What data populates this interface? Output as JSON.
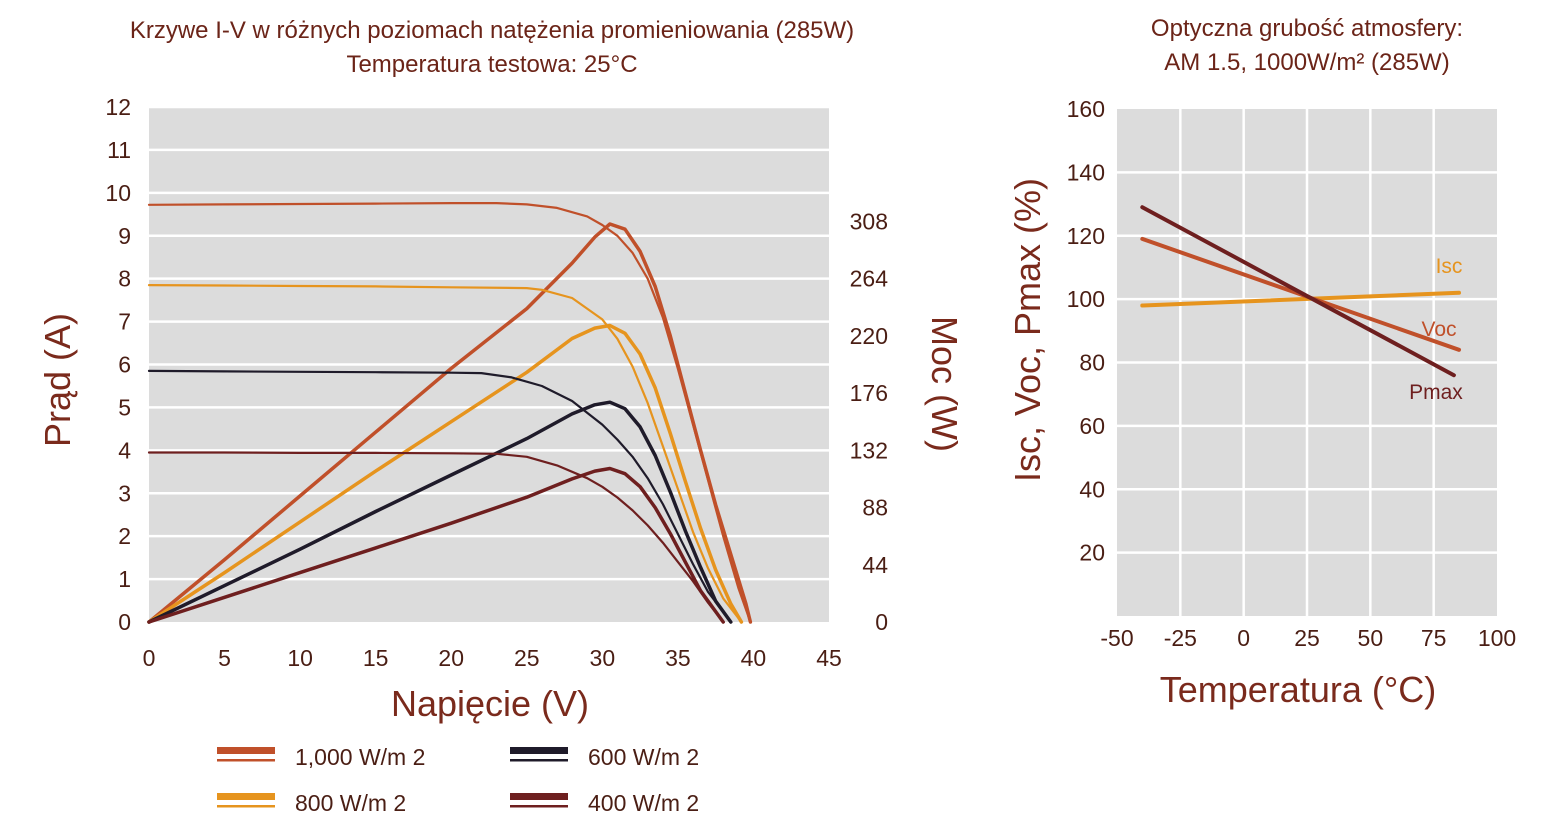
{
  "colors": {
    "irr_1000": "#c0502a",
    "irr_800": "#e6941e",
    "irr_600": "#1f1b2a",
    "irr_400": "#6e1f1f",
    "isc": "#e6941e",
    "voc": "#c0502a",
    "pmax": "#6e1f1f",
    "plot_bg": "#dcdcdc",
    "grid": "#ffffff",
    "text": "#6b2418"
  },
  "chart_data": [
    {
      "type": "line",
      "title": "Krzywe I-V w różnych poziomach natężenia promieniowania (285W)",
      "subtitle": "Temperatura testowa: 25°C",
      "xlabel": "Napięcie (V)",
      "ylabel": "Prąd (A)",
      "y2label": "Moc (W)",
      "xlim": [
        0,
        45
      ],
      "ylim": [
        0,
        12
      ],
      "y2lim": [
        0,
        396
      ],
      "xticks": [
        "0",
        "5",
        "10",
        "15",
        "20",
        "25",
        "30",
        "35",
        "40",
        "45"
      ],
      "yticks": [
        "0",
        "1",
        "2",
        "3",
        "4",
        "5",
        "6",
        "7",
        "8",
        "9",
        "10",
        "11",
        "12"
      ],
      "y2ticks": [
        {
          "value": 0,
          "label": "0"
        },
        {
          "value": 44,
          "label": "44"
        },
        {
          "value": 88,
          "label": "88"
        },
        {
          "value": 132,
          "label": "132"
        },
        {
          "value": 176,
          "label": "176"
        },
        {
          "value": 220,
          "label": "220"
        },
        {
          "value": 264,
          "label": "264"
        },
        {
          "value": 308,
          "label": "308"
        }
      ],
      "grid": true,
      "series": [
        {
          "name": "1,000 W/m 2",
          "color_key": "irr_1000",
          "current_x": [
            0,
            5,
            10,
            15,
            20,
            23,
            25,
            27,
            29,
            30,
            31,
            32,
            33,
            34,
            35,
            36,
            37,
            38,
            39,
            39.8
          ],
          "current_y": [
            9.72,
            9.73,
            9.74,
            9.75,
            9.76,
            9.76,
            9.73,
            9.65,
            9.45,
            9.25,
            9.0,
            8.6,
            8.0,
            7.1,
            5.9,
            4.6,
            3.3,
            2.0,
            0.8,
            0.0
          ],
          "power_x": [
            0,
            5,
            10,
            15,
            20,
            25,
            28,
            29.5,
            30.5,
            31.5,
            32.5,
            33.5,
            34.5,
            35.5,
            36.5,
            37.5,
            38.5,
            39.5,
            39.8
          ],
          "power_y": [
            0,
            48,
            97,
            146,
            195,
            241,
            276,
            296,
            306,
            302,
            285,
            258,
            220,
            176,
            132,
            90,
            52,
            14,
            0
          ]
        },
        {
          "name": "800 W/m 2",
          "color_key": "irr_800",
          "current_x": [
            0,
            5,
            10,
            15,
            20,
            25,
            26,
            28,
            30,
            31,
            32,
            33,
            34,
            35,
            36,
            37,
            38,
            39.2
          ],
          "current_y": [
            7.85,
            7.84,
            7.83,
            7.82,
            7.8,
            7.78,
            7.74,
            7.55,
            7.05,
            6.6,
            5.95,
            5.1,
            4.1,
            3.1,
            2.1,
            1.25,
            0.55,
            0.0
          ],
          "power_x": [
            0,
            5,
            10,
            15,
            20,
            25,
            28,
            29.5,
            30.5,
            31.5,
            32.5,
            33.5,
            34.5,
            35.5,
            36.5,
            37.5,
            38.5,
            39.2
          ],
          "power_y": [
            0,
            38,
            77,
            116,
            154,
            192,
            218,
            226,
            228,
            222,
            206,
            180,
            145,
            108,
            72,
            40,
            14,
            0
          ]
        },
        {
          "name": "600 W/m 2",
          "color_key": "irr_600",
          "current_x": [
            0,
            5,
            10,
            15,
            20,
            22,
            24,
            26,
            28,
            30,
            31,
            32,
            33,
            34,
            35,
            36,
            37,
            38.5
          ],
          "current_y": [
            5.85,
            5.84,
            5.83,
            5.82,
            5.81,
            5.8,
            5.7,
            5.5,
            5.15,
            4.6,
            4.25,
            3.85,
            3.35,
            2.75,
            2.05,
            1.35,
            0.7,
            0.0
          ],
          "power_x": [
            0,
            5,
            10,
            15,
            20,
            25,
            28,
            29.5,
            30.5,
            31.5,
            32.5,
            33.5,
            34.5,
            35.5,
            36.5,
            37.5,
            38.5
          ],
          "power_y": [
            0,
            28,
            56,
            85,
            113,
            141,
            160,
            167,
            169,
            164,
            150,
            128,
            100,
            70,
            42,
            16,
            0
          ]
        },
        {
          "name": "400 W/m 2",
          "color_key": "irr_400",
          "current_x": [
            0,
            5,
            10,
            15,
            20,
            23,
            25,
            27,
            29,
            30,
            31,
            32,
            33,
            34,
            35,
            36,
            37,
            38
          ],
          "current_y": [
            3.95,
            3.95,
            3.94,
            3.94,
            3.93,
            3.92,
            3.85,
            3.65,
            3.35,
            3.15,
            2.9,
            2.6,
            2.25,
            1.85,
            1.4,
            0.95,
            0.45,
            0.0
          ],
          "power_x": [
            0,
            5,
            10,
            15,
            20,
            25,
            28,
            29.5,
            30.5,
            31.5,
            32.5,
            33.5,
            34.5,
            35.5,
            36.5,
            37.5,
            38
          ],
          "power_y": [
            0,
            19,
            38,
            57,
            76,
            96,
            110,
            116,
            118,
            114,
            104,
            88,
            68,
            46,
            24,
            8,
            0
          ]
        }
      ],
      "legend": [
        {
          "label": "1,000 W/m 2",
          "color_key": "irr_1000"
        },
        {
          "label": "600 W/m 2",
          "color_key": "irr_600"
        },
        {
          "label": "800 W/m 2",
          "color_key": "irr_800"
        },
        {
          "label": "400 W/m 2",
          "color_key": "irr_400"
        }
      ]
    },
    {
      "type": "line",
      "title": "Optyczna grubość atmosfery:",
      "subtitle": "AM 1.5, 1000W/m² (285W)",
      "xlabel": "Temperatura (°C)",
      "ylabel": "Isc, Voc, Pmax (%)",
      "xlim": [
        -50,
        100
      ],
      "ylim": [
        0,
        160
      ],
      "xticks": [
        "-50",
        "-25",
        "0",
        "25",
        "50",
        "75",
        "100"
      ],
      "yticks": [
        "20",
        "40",
        "60",
        "80",
        "100",
        "120",
        "140",
        "160"
      ],
      "grid": true,
      "series": [
        {
          "name": "Isc",
          "color_key": "isc",
          "x": [
            -40,
            85
          ],
          "y": [
            98,
            102
          ]
        },
        {
          "name": "Voc",
          "color_key": "voc",
          "x": [
            -40,
            85
          ],
          "y": [
            119,
            84
          ]
        },
        {
          "name": "Pmax",
          "color_key": "pmax",
          "x": [
            -40,
            83
          ],
          "y": [
            129,
            76
          ]
        }
      ]
    }
  ]
}
